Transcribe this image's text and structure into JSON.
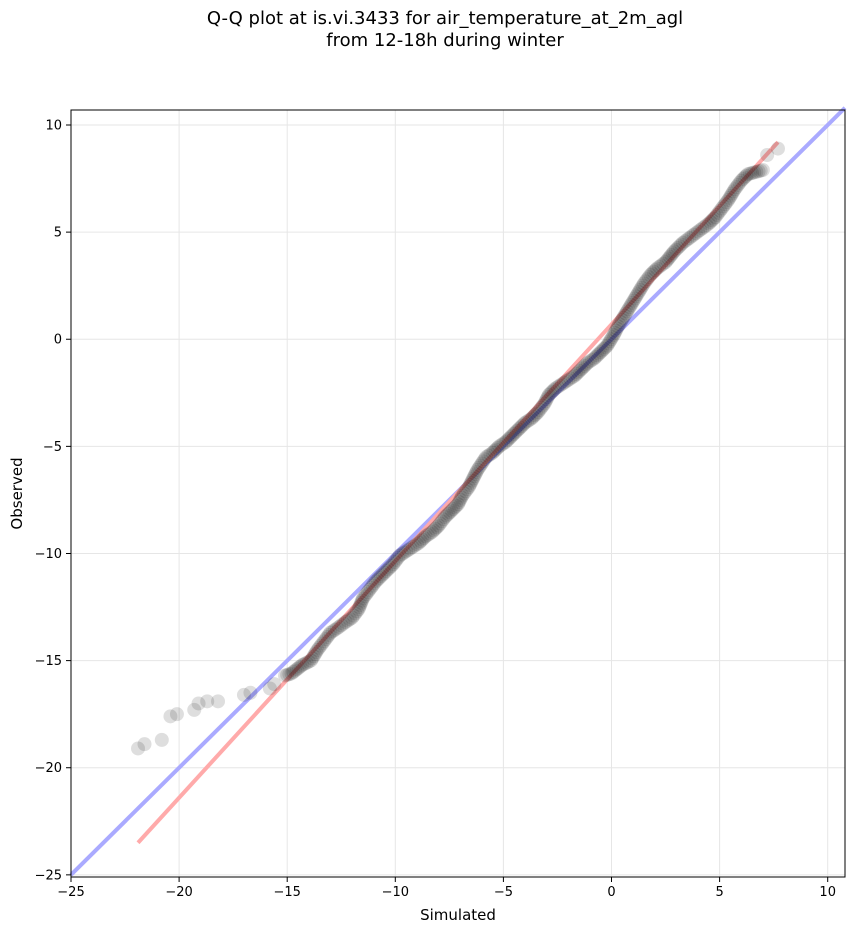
{
  "chart_data": {
    "type": "scatter",
    "title_lines": [
      "Q-Q plot at is.vi.3433 for air_temperature_at_2m_agl",
      "from 12-18h during winter"
    ],
    "xlabel": "Simulated",
    "ylabel": "Observed",
    "xlim": [
      -25,
      10.8
    ],
    "ylim": [
      -25.1,
      10.7
    ],
    "xticks": [
      -25,
      -20,
      -15,
      -10,
      -5,
      0,
      5,
      10
    ],
    "yticks": [
      -25,
      -20,
      -15,
      -10,
      -5,
      0,
      5,
      10
    ],
    "xtick_labels": [
      "−25",
      "−20",
      "−15",
      "−10",
      "−5",
      "0",
      "5",
      "10"
    ],
    "ytick_labels": [
      "−25",
      "−20",
      "−15",
      "−10",
      "−5",
      "0",
      "5",
      "10"
    ],
    "grid": true,
    "reference_line": {
      "name": "1:1 line",
      "color": "#aaaaff",
      "from": [
        -25,
        -25
      ],
      "to": [
        10.8,
        10.8
      ]
    },
    "fit_line": {
      "name": "fit",
      "color": "#ffaaaa",
      "from": [
        -21.9,
        -23.5
      ],
      "to": [
        7.7,
        9.2
      ]
    },
    "points": [
      [
        -21.9,
        -19.1
      ],
      [
        -21.6,
        -18.9
      ],
      [
        -20.8,
        -18.7
      ],
      [
        -20.4,
        -17.6
      ],
      [
        -20.1,
        -17.5
      ],
      [
        -19.3,
        -17.3
      ],
      [
        -19.1,
        -17.0
      ],
      [
        -18.7,
        -16.9
      ],
      [
        -18.2,
        -16.9
      ],
      [
        -17.0,
        -16.6
      ],
      [
        -16.7,
        -16.5
      ],
      [
        -15.8,
        -16.3
      ],
      [
        -15.6,
        -16.1
      ],
      [
        -15.1,
        -15.7
      ],
      [
        -14.8,
        -15.6
      ],
      [
        -14.3,
        -15.2
      ],
      [
        -13.9,
        -15.0
      ],
      [
        -13.6,
        -14.5
      ],
      [
        -13.3,
        -14.1
      ],
      [
        -13.0,
        -13.7
      ],
      [
        -12.7,
        -13.5
      ],
      [
        -12.3,
        -13.2
      ],
      [
        -12.0,
        -13.0
      ],
      [
        -11.7,
        -12.6
      ],
      [
        -11.5,
        -12.1
      ],
      [
        -11.2,
        -11.7
      ],
      [
        -10.9,
        -11.3
      ],
      [
        -10.5,
        -10.9
      ],
      [
        -10.1,
        -10.5
      ],
      [
        -9.8,
        -10.1
      ],
      [
        -9.5,
        -9.9
      ],
      [
        -9.2,
        -9.7
      ],
      [
        -8.9,
        -9.5
      ],
      [
        -8.6,
        -9.2
      ],
      [
        -8.3,
        -9.0
      ],
      [
        -8.0,
        -8.7
      ],
      [
        -7.7,
        -8.3
      ],
      [
        -7.4,
        -8.0
      ],
      [
        -7.1,
        -7.7
      ],
      [
        -6.9,
        -7.3
      ],
      [
        -6.6,
        -6.9
      ],
      [
        -6.4,
        -6.5
      ],
      [
        -6.2,
        -6.1
      ],
      [
        -6.0,
        -5.8
      ],
      [
        -5.8,
        -5.5
      ],
      [
        -5.5,
        -5.3
      ],
      [
        -5.2,
        -5.0
      ],
      [
        -4.9,
        -4.8
      ],
      [
        -4.6,
        -4.5
      ],
      [
        -4.3,
        -4.2
      ],
      [
        -4.0,
        -3.9
      ],
      [
        -3.7,
        -3.7
      ],
      [
        -3.4,
        -3.4
      ],
      [
        -3.1,
        -3.0
      ],
      [
        -2.9,
        -2.6
      ],
      [
        -2.6,
        -2.3
      ],
      [
        -2.3,
        -2.1
      ],
      [
        -2.0,
        -1.9
      ],
      [
        -1.7,
        -1.7
      ],
      [
        -1.4,
        -1.4
      ],
      [
        -1.1,
        -1.1
      ],
      [
        -0.8,
        -0.9
      ],
      [
        -0.5,
        -0.6
      ],
      [
        -0.2,
        -0.3
      ],
      [
        0.1,
        0.2
      ],
      [
        0.3,
        0.6
      ],
      [
        0.6,
        1.1
      ],
      [
        0.9,
        1.6
      ],
      [
        1.2,
        2.1
      ],
      [
        1.5,
        2.6
      ],
      [
        1.8,
        3.0
      ],
      [
        2.1,
        3.3
      ],
      [
        2.5,
        3.6
      ],
      [
        2.9,
        4.1
      ],
      [
        3.3,
        4.5
      ],
      [
        3.7,
        4.8
      ],
      [
        4.1,
        5.1
      ],
      [
        4.5,
        5.4
      ],
      [
        4.8,
        5.7
      ],
      [
        5.1,
        6.1
      ],
      [
        5.4,
        6.5
      ],
      [
        5.7,
        7.0
      ],
      [
        6.0,
        7.4
      ],
      [
        6.3,
        7.7
      ],
      [
        7.0,
        7.9
      ],
      [
        7.2,
        8.6
      ],
      [
        7.7,
        8.9
      ]
    ]
  }
}
